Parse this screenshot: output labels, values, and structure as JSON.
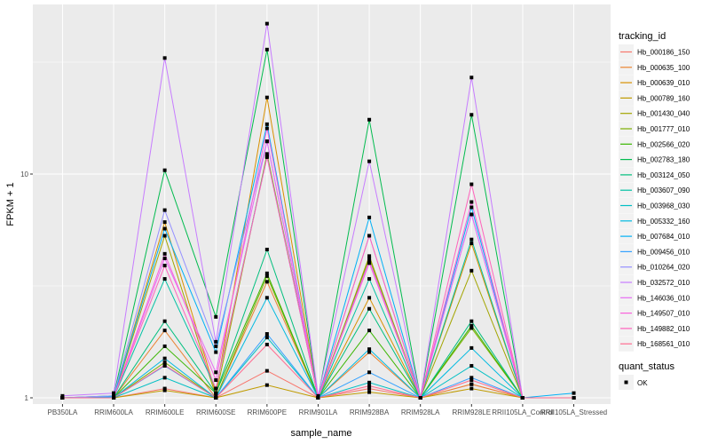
{
  "chart_data": {
    "type": "line",
    "title": "",
    "xlabel": "sample_name",
    "ylabel": "FPKM + 1",
    "yscale": "log10",
    "ylim": [
      0.97,
      57
    ],
    "yticks": [
      1,
      10
    ],
    "ytick_labels": [
      "1",
      "10"
    ],
    "grid": true,
    "legend_placement": "right",
    "categories": [
      "PB350LA",
      "RRIM600LA",
      "RRIM600LE",
      "RRIM600SE",
      "RRIM600PE",
      "RRIM901LA",
      "RRIM928BA",
      "RRIM928LA",
      "RRIM928LE",
      "RRII105LA_Control",
      "RRII105LA_Stressed"
    ],
    "legend_title": "tracking_id",
    "series": [
      {
        "name": "Hb_000186_150",
        "color": "#F8766D",
        "values": [
          1.0,
          1.0,
          1.1,
          1.0,
          1.32,
          1.0,
          1.1,
          1.0,
          1.15,
          1.0,
          1.0
        ]
      },
      {
        "name": "Hb_000635_100",
        "color": "#EA8331",
        "values": [
          1.0,
          1.0,
          2.0,
          1.0,
          3.3,
          1.0,
          1.6,
          1.0,
          1.15,
          1.0,
          1.0
        ]
      },
      {
        "name": "Hb_000639_010",
        "color": "#D89000",
        "values": [
          1.0,
          1.0,
          6.1,
          1.05,
          22,
          1.0,
          2.8,
          1.0,
          4.9,
          1.0,
          1.0
        ]
      },
      {
        "name": "Hb_000789_160",
        "color": "#C09B00",
        "values": [
          1.0,
          1.0,
          1.08,
          1.0,
          1.14,
          1.0,
          1.06,
          1.0,
          1.1,
          1.0,
          1.0
        ]
      },
      {
        "name": "Hb_001430_040",
        "color": "#A3A500",
        "values": [
          1.0,
          1.0,
          5.3,
          1.02,
          12.3,
          1.0,
          4.3,
          1.0,
          3.7,
          1.0,
          1.0
        ]
      },
      {
        "name": "Hb_001777_010",
        "color": "#7CAE00",
        "values": [
          1.0,
          1.0,
          1.44,
          1.0,
          3.5,
          1.0,
          4.2,
          1.0,
          2.05,
          1.0,
          1.0
        ]
      },
      {
        "name": "Hb_002566_020",
        "color": "#39B600",
        "values": [
          1.0,
          1.0,
          1.7,
          1.05,
          3.6,
          1.0,
          2.0,
          1.0,
          2.1,
          1.0,
          1.0
        ]
      },
      {
        "name": "Hb_002783_180",
        "color": "#00BB4E",
        "values": [
          1.0,
          1.02,
          10.4,
          2.3,
          36,
          1.0,
          17.5,
          1.0,
          18.4,
          1.0,
          1.0
        ]
      },
      {
        "name": "Hb_003124_050",
        "color": "#00BF7D",
        "values": [
          1.0,
          1.0,
          2.2,
          1.05,
          4.6,
          1.0,
          2.5,
          1.0,
          2.2,
          1.0,
          1.0
        ]
      },
      {
        "name": "Hb_003607_090",
        "color": "#00C1A3",
        "values": [
          1.0,
          1.0,
          3.4,
          1.1,
          12.0,
          1.0,
          3.4,
          1.0,
          5.1,
          1.0,
          1.0
        ]
      },
      {
        "name": "Hb_003968_030",
        "color": "#00BFC4",
        "values": [
          1.0,
          1.0,
          1.23,
          1.0,
          1.86,
          1.0,
          1.17,
          1.0,
          1.39,
          1.0,
          1.0
        ]
      },
      {
        "name": "Hb_005332_160",
        "color": "#00BAE0",
        "values": [
          1.0,
          1.0,
          1.5,
          1.0,
          2.8,
          1.0,
          1.65,
          1.0,
          1.67,
          1.0,
          1.0
        ]
      },
      {
        "name": "Hb_007684_010",
        "color": "#00B0F6",
        "values": [
          1.0,
          1.01,
          5.7,
          1.6,
          16.7,
          1.0,
          6.4,
          1.0,
          7.1,
          1.0,
          1.05
        ]
      },
      {
        "name": "Hb_009456_010",
        "color": "#35A2FF",
        "values": [
          1.0,
          1.0,
          1.39,
          1.0,
          1.93,
          1.0,
          1.3,
          1.0,
          1.23,
          1.0,
          1.0
        ]
      },
      {
        "name": "Hb_010264_020",
        "color": "#9590FF",
        "values": [
          1.0,
          1.02,
          6.9,
          1.7,
          14,
          1.0,
          5.3,
          1.0,
          6.6,
          1.0,
          1.0
        ]
      },
      {
        "name": "Hb_032572_010",
        "color": "#C77CFF",
        "values": [
          1.02,
          1.05,
          33,
          1.78,
          47,
          1.02,
          11.4,
          1.0,
          27,
          1.0,
          1.0
        ]
      },
      {
        "name": "Hb_146036_010",
        "color": "#E76BF3",
        "values": [
          1.0,
          1.0,
          4.2,
          1.3,
          14,
          1.0,
          4.1,
          1.0,
          6.6,
          1.0,
          1.0
        ]
      },
      {
        "name": "Hb_149507_010",
        "color": "#FA62DB",
        "values": [
          1.0,
          1.0,
          4.4,
          1.2,
          16,
          1.0,
          4.0,
          1.0,
          7.5,
          1.0,
          1.0
        ]
      },
      {
        "name": "Hb_149882_010",
        "color": "#FF62BC",
        "values": [
          1.0,
          1.0,
          3.9,
          1.1,
          11.9,
          1.0,
          5.3,
          1.0,
          9.0,
          1.0,
          1.0
        ]
      },
      {
        "name": "Hb_168561_010",
        "color": "#FF6C91",
        "values": [
          1.0,
          1.0,
          1.4,
          1.0,
          1.73,
          1.0,
          1.13,
          1.0,
          1.2,
          1.0,
          1.0
        ]
      }
    ],
    "shape_legend": {
      "title": "quant_status",
      "items": [
        "OK"
      ]
    }
  }
}
